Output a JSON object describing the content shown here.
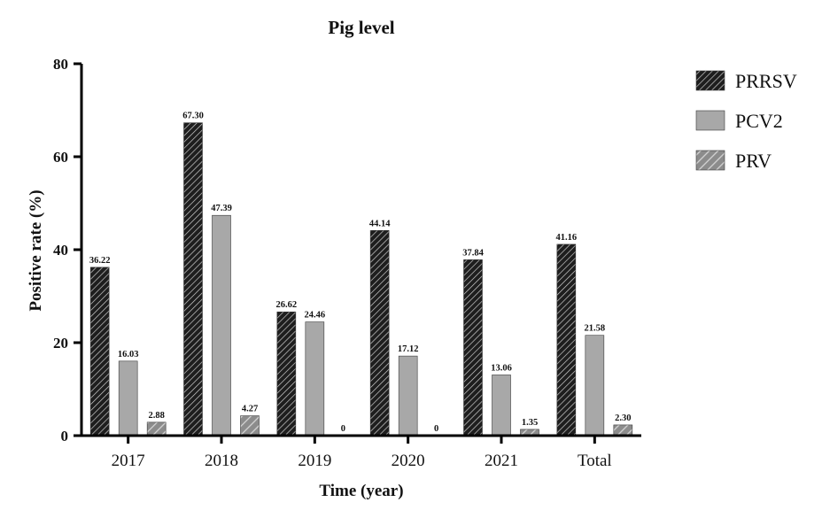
{
  "chart_data": {
    "type": "bar",
    "title": "Pig level",
    "xlabel": "Time (year)",
    "ylabel": "Positive rate (%)",
    "ylim": [
      0,
      80
    ],
    "yticks": [
      0,
      20,
      40,
      60,
      80
    ],
    "categories": [
      "2017",
      "2018",
      "2019",
      "2020",
      "2021",
      "Total"
    ],
    "series": [
      {
        "name": "PRRSV",
        "values": [
          36.22,
          67.3,
          26.62,
          44.14,
          37.84,
          41.16
        ],
        "labels": [
          "36.22",
          "67.30",
          "26.62",
          "44.14",
          "37.84",
          "41.16"
        ],
        "pattern": "dense-dark-hatch",
        "color": "#2b2b2b"
      },
      {
        "name": "PCV2",
        "values": [
          16.03,
          47.39,
          24.46,
          17.12,
          13.06,
          21.58
        ],
        "labels": [
          "16.03",
          "47.39",
          "24.46",
          "17.12",
          "13.06",
          "21.58"
        ],
        "pattern": "solid",
        "color": "#a8a8a8"
      },
      {
        "name": "PRV",
        "values": [
          2.88,
          4.27,
          0,
          0,
          1.35,
          2.3
        ],
        "labels": [
          "2.88",
          "4.27",
          "0",
          "0",
          "1.35",
          "2.30"
        ],
        "pattern": "light-hatch",
        "color": "#8c8c8c"
      }
    ],
    "legend_position": "top-right",
    "grid": false
  }
}
